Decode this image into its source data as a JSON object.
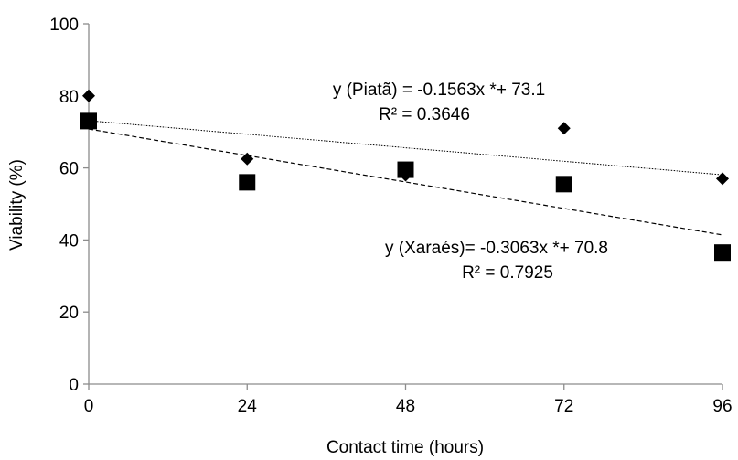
{
  "chart_data": {
    "type": "scatter",
    "xlabel": "Contact time (hours)",
    "ylabel": "Viability (%)",
    "xlim": [
      0,
      96
    ],
    "ylim": [
      0,
      100
    ],
    "xticks": [
      "0",
      "24",
      "48",
      "72",
      "96"
    ],
    "yticks": [
      "0",
      "20",
      "40",
      "60",
      "80",
      "100"
    ],
    "grid": false,
    "series": [
      {
        "marker": "diamond",
        "points": [
          [
            0,
            80
          ],
          [
            24,
            62.5
          ],
          [
            48,
            58
          ],
          [
            72,
            71
          ],
          [
            96,
            57
          ]
        ],
        "trendline": {
          "slope": -0.1563,
          "intercept": 73.1,
          "style": "dotted"
        }
      },
      {
        "marker": "square",
        "points": [
          [
            0,
            73
          ],
          [
            24,
            56
          ],
          [
            48,
            59.5
          ],
          [
            72,
            55.5
          ],
          [
            96,
            36.5
          ]
        ],
        "trendline": {
          "slope": -0.3063,
          "intercept": 70.8,
          "style": "dashed"
        }
      }
    ],
    "annotations": [
      {
        "line1": "y (Piatã) = -0.1563x *+ 73.1",
        "line2": "R² = 0.3646"
      },
      {
        "line1": "y (Xaraés)= -0.3063x *+ 70.8",
        "line2": "R² = 0.7925"
      }
    ]
  }
}
